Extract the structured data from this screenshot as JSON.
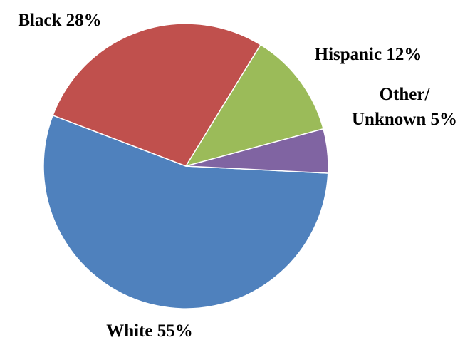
{
  "chart_data": {
    "type": "pie",
    "slices": [
      {
        "name": "White",
        "value": 55,
        "color": "#4F81BD",
        "label_lines": [
          "White 55%"
        ]
      },
      {
        "name": "Black",
        "value": 28,
        "color": "#C0504D",
        "label_lines": [
          "Black 28%"
        ]
      },
      {
        "name": "Hispanic",
        "value": 12,
        "color": "#9BBB59",
        "label_lines": [
          "Hispanic 12%"
        ]
      },
      {
        "name": "Other/ Unknown",
        "value": 5,
        "color": "#8064A2",
        "label_lines": [
          "Other/",
          "Unknown 5%"
        ]
      }
    ],
    "legend": "none",
    "labels_outside": true
  }
}
